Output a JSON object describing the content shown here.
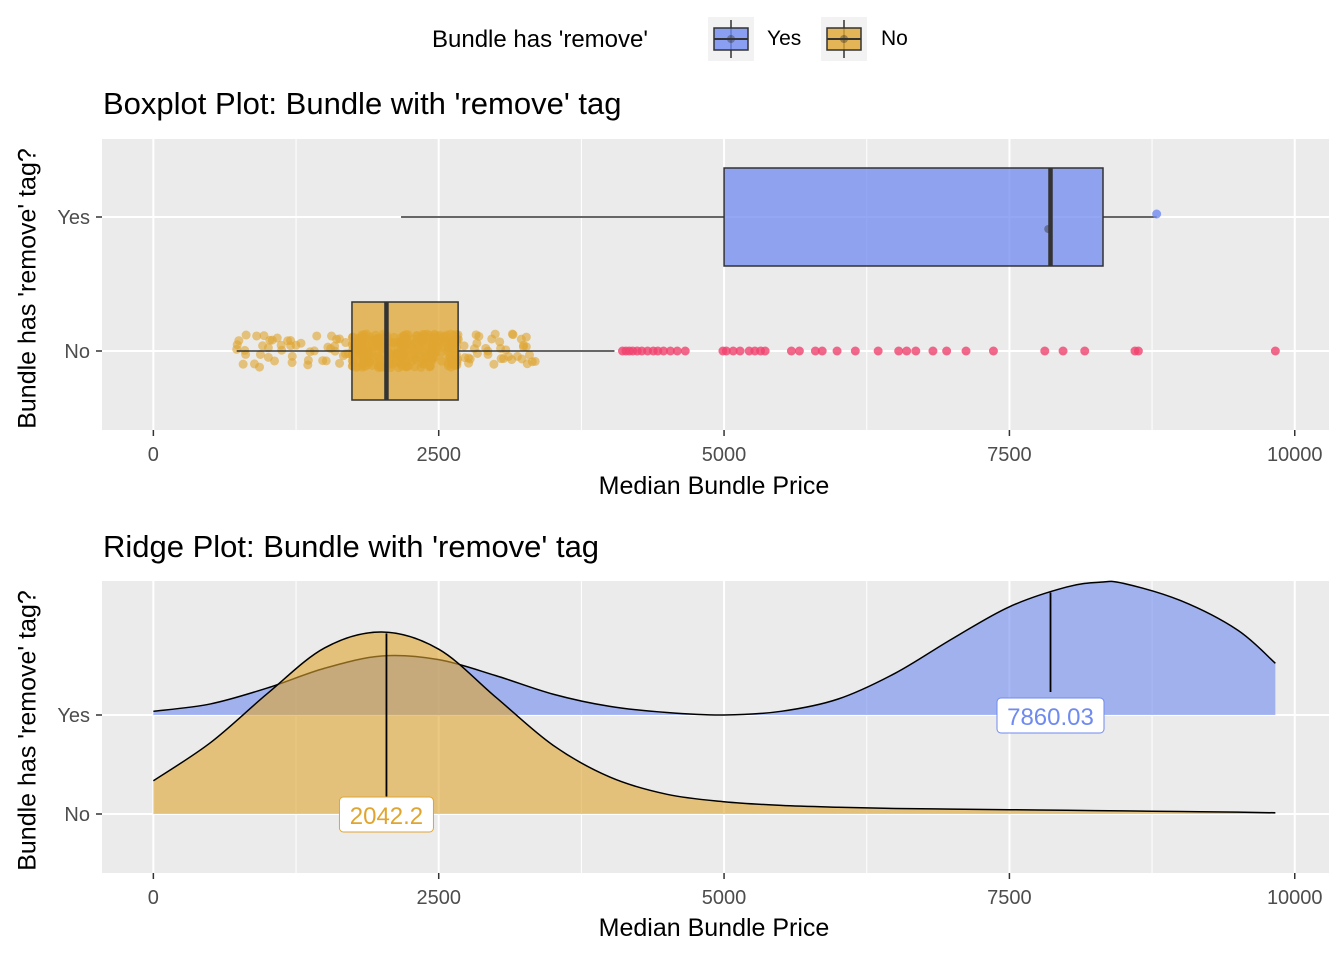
{
  "legend": {
    "title": "Bundle has 'remove'",
    "items": [
      {
        "label": "Yes",
        "color": "#6f8af0"
      },
      {
        "label": "No",
        "color": "#e0a530"
      }
    ]
  },
  "chart_data": [
    {
      "type": "boxplot",
      "title": "Boxplot Plot: Bundle with 'remove' tag",
      "xlabel": "Median Bundle Price",
      "ylabel": "Bundle has 'remove' tag?",
      "xlim": [
        -450,
        10300
      ],
      "x_ticks": [
        0,
        2500,
        5000,
        7500,
        10000
      ],
      "categories": [
        "Yes",
        "No"
      ],
      "grid": true,
      "series": [
        {
          "name": "Yes",
          "color": "#6f8af0",
          "whisker_low": 2170,
          "q1": 5000,
          "median": 7860.03,
          "q3": 8320,
          "whisker_high": 8790,
          "mean": 7840,
          "outliers": [
            8790
          ]
        },
        {
          "name": "No",
          "color": "#e0a530",
          "whisker_low": 730,
          "q1": 1740,
          "median": 2042.2,
          "q3": 2670,
          "whisker_high": 4040,
          "outliers": [
            4110,
            4140,
            4170,
            4200,
            4240,
            4280,
            4330,
            4380,
            4420,
            4470,
            4530,
            4590,
            4660,
            4990,
            5020,
            5080,
            5140,
            5220,
            5270,
            5320,
            5360,
            5590,
            5660,
            5800,
            5860,
            5990,
            6150,
            6350,
            6530,
            6600,
            6680,
            6830,
            6950,
            7120,
            7360,
            7810,
            7970,
            8160,
            8600,
            8630,
            9830
          ]
        }
      ]
    },
    {
      "type": "area",
      "title": "Ridge Plot: Bundle with 'remove' tag",
      "xlabel": "Median Bundle Price",
      "ylabel": "Bundle has 'remove' tag?",
      "xlim": [
        -450,
        10300
      ],
      "x_ticks": [
        0,
        2500,
        5000,
        7500,
        10000
      ],
      "categories": [
        "Yes",
        "No"
      ],
      "grid": true,
      "series": [
        {
          "name": "Yes",
          "color": "#6f8af0",
          "x": [
            0,
            500,
            1000,
            1500,
            2000,
            2500,
            3000,
            3500,
            4000,
            4500,
            5000,
            5500,
            6000,
            6500,
            7000,
            7500,
            8000,
            8300,
            8500,
            9000,
            9500,
            9830
          ],
          "density": [
            0.03,
            0.09,
            0.22,
            0.38,
            0.48,
            0.45,
            0.32,
            0.17,
            0.07,
            0.02,
            0.0,
            0.03,
            0.13,
            0.34,
            0.62,
            0.88,
            1.04,
            1.08,
            1.07,
            0.93,
            0.69,
            0.42
          ],
          "median": 7860.03,
          "median_label": "7860.03"
        },
        {
          "name": "No",
          "color": "#e0a530",
          "x": [
            0,
            500,
            1000,
            1500,
            2000,
            2500,
            3000,
            3500,
            4000,
            4500,
            5000,
            5500,
            6000,
            6500,
            7000,
            7500,
            8000,
            8500,
            9000,
            9500,
            9830
          ],
          "density": [
            0.27,
            0.58,
            0.98,
            1.35,
            1.48,
            1.34,
            0.95,
            0.56,
            0.3,
            0.16,
            0.1,
            0.07,
            0.055,
            0.045,
            0.04,
            0.035,
            0.03,
            0.025,
            0.02,
            0.015,
            0.01
          ],
          "median": 2042.2,
          "median_label": "2042.2"
        }
      ]
    }
  ]
}
